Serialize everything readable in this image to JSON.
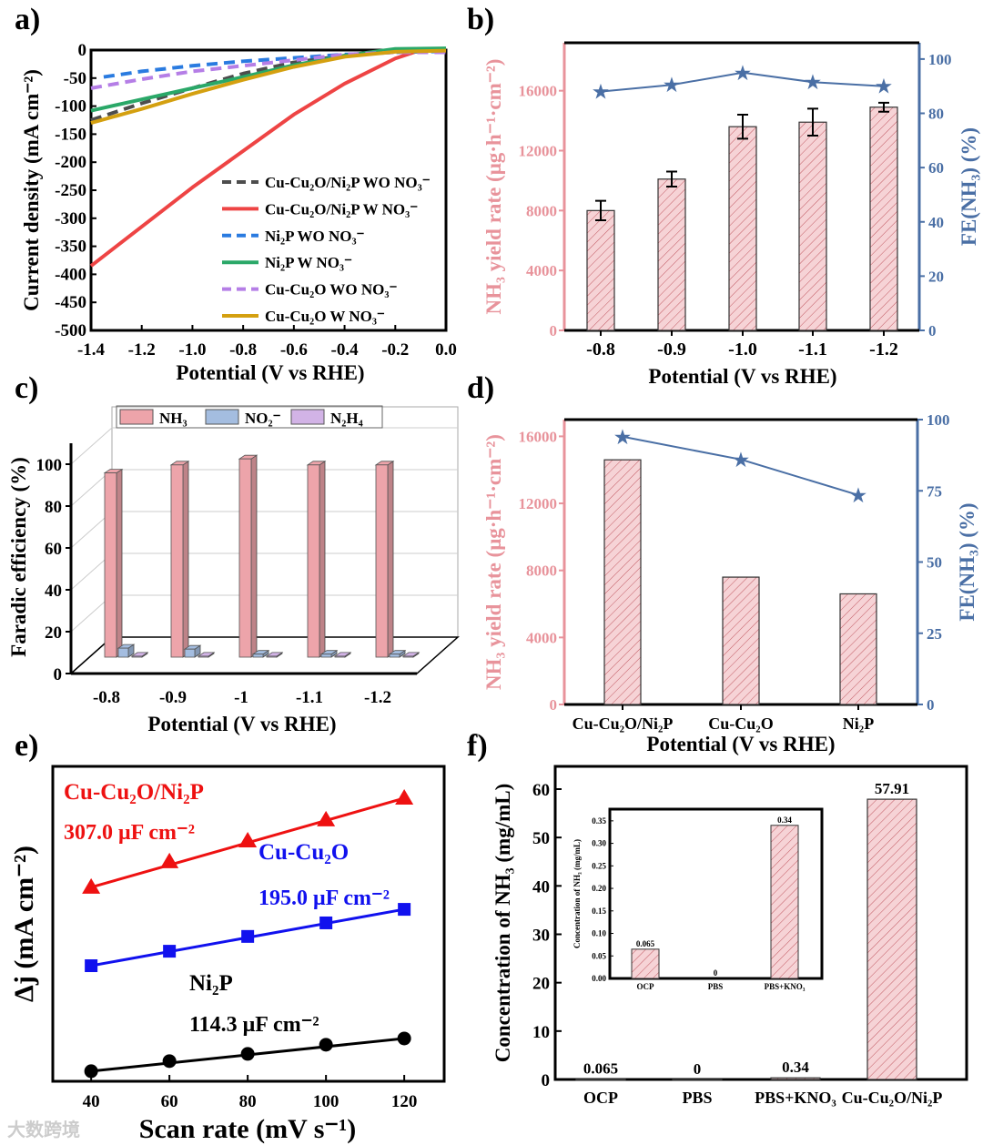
{
  "colors": {
    "pink": "#e8939b",
    "blue": "#4a6fa5",
    "hatch_fill": "#f6d3d6",
    "hatch_line": "#c25a63"
  },
  "watermark": "大数跨境",
  "chart_data": [
    {
      "panel": "a)",
      "type": "line",
      "xlabel": "Potential (V vs RHE)",
      "ylabel": "Current density (mA cm⁻²)",
      "xlim": [
        -1.4,
        0
      ],
      "ylim": [
        -500,
        0
      ],
      "xticks": [
        "-1.4",
        "-1.2",
        "-1.0",
        "-0.8",
        "-0.6",
        "-0.4",
        "-0.2",
        "0.0"
      ],
      "yticks": [
        "0",
        "-50",
        "-100",
        "-150",
        "-200",
        "-250",
        "-300",
        "-350",
        "-400",
        "-450",
        "-500"
      ],
      "series": [
        {
          "name": "Cu-Cu₂O/Ni₂P WO NO₃⁻",
          "color": "#4d4d4d",
          "dash": true,
          "x": [
            -1.4,
            -1.2,
            -1.0,
            -0.8,
            -0.6,
            -0.4,
            -0.2,
            0
          ],
          "y": [
            -125,
            -95,
            -68,
            -42,
            -22,
            -10,
            -2,
            0
          ]
        },
        {
          "name": "Cu-Cu₂O/Ni₂P W NO₃⁻",
          "color": "#ee4444",
          "dash": false,
          "x": [
            -1.4,
            -1.2,
            -1.0,
            -0.8,
            -0.6,
            -0.4,
            -0.2,
            -0.1,
            0
          ],
          "y": [
            -385,
            -315,
            -245,
            -180,
            -115,
            -60,
            -15,
            0,
            2
          ]
        },
        {
          "name": "Ni₂P WO NO₃⁻",
          "color": "#2a7be0",
          "dash": true,
          "x": [
            -1.35,
            -1.2,
            -1.0,
            -0.8,
            -0.6,
            -0.4,
            -0.2,
            0
          ],
          "y": [
            -48,
            -38,
            -28,
            -20,
            -14,
            -8,
            -4,
            -2
          ]
        },
        {
          "name": "Ni₂P W NO₃⁻",
          "color": "#2aa868",
          "dash": false,
          "x": [
            -1.4,
            -1.2,
            -1.0,
            -0.8,
            -0.6,
            -0.4,
            -0.2,
            0
          ],
          "y": [
            -108,
            -88,
            -68,
            -48,
            -27,
            -10,
            2,
            3
          ]
        },
        {
          "name": "Cu-Cu₂O WO NO₃⁻",
          "color": "#b57ee6",
          "dash": true,
          "x": [
            -1.4,
            -1.2,
            -1.0,
            -0.8,
            -0.6,
            -0.4,
            -0.2,
            0
          ],
          "y": [
            -68,
            -52,
            -38,
            -28,
            -18,
            -8,
            -4,
            -4
          ]
        },
        {
          "name": "Cu-Cu₂O W NO₃⁻",
          "color": "#d4a010",
          "dash": false,
          "x": [
            -1.4,
            -1.2,
            -1.0,
            -0.8,
            -0.6,
            -0.4,
            -0.2,
            0
          ],
          "y": [
            -130,
            -105,
            -78,
            -53,
            -30,
            -12,
            -3,
            -1
          ]
        }
      ],
      "legend": "bottom-right"
    },
    {
      "panel": "b)",
      "type": "bar+line",
      "xlabel": "Potential (V vs RHE)",
      "ylabel": "NH₃ yield rate (μg·h⁻¹·cm⁻²)",
      "ylabel_right": "FE(NH₃) (%)",
      "categories": [
        "-0.8",
        "-0.9",
        "-1.0",
        "-1.1",
        "-1.2"
      ],
      "ylim": [
        0,
        19200
      ],
      "ylim_right": [
        0,
        106
      ],
      "yticks": [
        "0",
        "4000",
        "8000",
        "12000",
        "16000"
      ],
      "yticks_right": [
        "0",
        "20",
        "40",
        "60",
        "80",
        "100"
      ],
      "bars": [
        8000,
        10100,
        13600,
        13900,
        14900
      ],
      "errors": [
        650,
        500,
        800,
        900,
        300
      ],
      "fe": [
        88,
        90.5,
        95,
        91.5,
        90
      ]
    },
    {
      "panel": "c)",
      "type": "bar3d",
      "xlabel": "Potential (V vs RHE)",
      "ylabel": "Faradic efficiency (%)",
      "categories": [
        "-0.8",
        "-0.9",
        "-1",
        "-1.1",
        "-1.2"
      ],
      "ylim": [
        0,
        110
      ],
      "yticks": [
        "0",
        "20",
        "40",
        "60",
        "80",
        "100"
      ],
      "series": [
        {
          "name": "NH₃",
          "color": "#eda4aa",
          "values": [
            92,
            96,
            99,
            96,
            96
          ]
        },
        {
          "name": "NO₂⁻",
          "color": "#a4bde0",
          "values": [
            4.5,
            4,
            1.5,
            1.5,
            1.5
          ]
        },
        {
          "name": "N₂H₄",
          "color": "#d2b3e6",
          "values": [
            0.5,
            0.5,
            0.5,
            0.5,
            0.5
          ]
        }
      ],
      "legend": "top"
    },
    {
      "panel": "d)",
      "type": "bar+line",
      "xlabel": "Potential (V vs RHE)",
      "ylabel": "NH₃ yield rate (μg·h⁻¹·cm⁻²)",
      "ylabel_right": "FE(NH₃) (%)",
      "categories": [
        "Cu-Cu₂O/Ni₂P",
        "Cu-Cu₂O",
        "Ni₂P"
      ],
      "ylim": [
        0,
        17000
      ],
      "ylim_right": [
        0,
        100
      ],
      "yticks": [
        "0",
        "4000",
        "8000",
        "12000",
        "16000"
      ],
      "yticks_right": [
        "0",
        "25",
        "50",
        "75",
        "100"
      ],
      "bars": [
        14600,
        7600,
        6600
      ],
      "fe": [
        94,
        86,
        73.5
      ]
    },
    {
      "panel": "e)",
      "type": "scatter",
      "xlabel": "Scan rate (mV s⁻¹)",
      "ylabel": "Δj (mA cm⁻²)",
      "xlim": [
        30.2,
        130.2
      ],
      "ylim": [
        0,
        10
      ],
      "xticks": [
        "40",
        "60",
        "80",
        "100",
        "120"
      ],
      "series": [
        {
          "name": "Cu-Cu₂O/Ni₂P",
          "cap": "307.0 μF cm⁻²",
          "color": "#ee1111",
          "marker": "triangle",
          "x": [
            40,
            60,
            80,
            100,
            120
          ],
          "y": [
            6.16,
            6.97,
            7.63,
            8.3,
            8.99
          ]
        },
        {
          "name": "Cu-Cu₂O",
          "cap": "195.0 μF cm⁻²",
          "color": "#1111ee",
          "marker": "square",
          "x": [
            40,
            60,
            80,
            100,
            120
          ],
          "y": [
            3.67,
            4.13,
            4.6,
            5.03,
            5.46
          ]
        },
        {
          "name": "Ni₂P",
          "cap": "114.3  μF cm⁻²",
          "color": "#000000",
          "marker": "circle",
          "x": [
            40,
            60,
            80,
            100,
            120
          ],
          "y": [
            0.32,
            0.64,
            0.87,
            1.16,
            1.36
          ]
        }
      ]
    },
    {
      "panel": "f)",
      "type": "bar",
      "ylabel": "Concentration of NH₃ (mg/mL)",
      "categories": [
        "OCP",
        "PBS",
        "PBS+KNO₃",
        "Cu-Cu₂O/Ni₂P"
      ],
      "values": [
        0.065,
        0,
        0.34,
        57.91
      ],
      "labels": [
        "0.065",
        "0",
        "0.34",
        "57.91"
      ],
      "ylim": [
        0,
        64.7
      ],
      "yticks": [
        "0",
        "10",
        "20",
        "30",
        "40",
        "50",
        "60"
      ],
      "inset": {
        "ylabel": "Concentration of NH₃ (mg/mL)",
        "categories": [
          "OCP",
          "PBS",
          "PBS+KNO₃"
        ],
        "values": [
          0.065,
          0,
          0.34
        ],
        "labels": [
          "0.065",
          "0",
          "0.34"
        ],
        "ylim": [
          0,
          0.376
        ],
        "yticks": [
          "0.00",
          "0.05",
          "0.10",
          "0.15",
          "0.20",
          "0.25",
          "0.30",
          "0.35"
        ]
      }
    }
  ]
}
